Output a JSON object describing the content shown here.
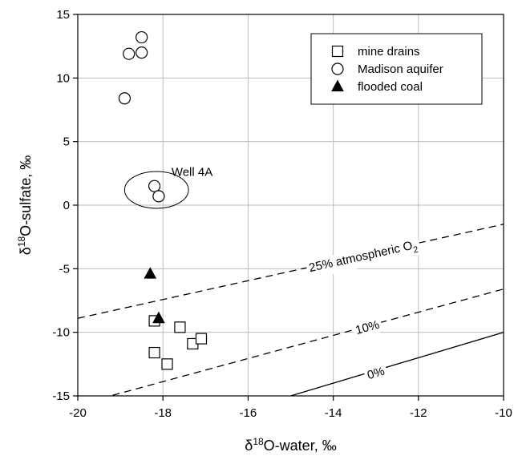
{
  "chart_data": {
    "type": "scatter",
    "xlabel": {
      "main": "δ",
      "sup": "18",
      "rest": "O-water, ‰"
    },
    "ylabel": {
      "main": "δ",
      "sup": "18",
      "rest": "O-sulfate, ‰"
    },
    "xlim": [
      -20,
      -10
    ],
    "ylim": [
      -15,
      15
    ],
    "xticks": [
      -20,
      -18,
      -16,
      -14,
      -12,
      -10
    ],
    "yticks": [
      -15,
      -10,
      -5,
      0,
      5,
      10,
      15
    ],
    "grid": true,
    "legend_position": "top-right",
    "series": [
      {
        "name": "mine drains",
        "marker": "square",
        "points": [
          [
            -18.2,
            -9.1
          ],
          [
            -18.2,
            -11.6
          ],
          [
            -17.9,
            -12.5
          ],
          [
            -17.6,
            -9.6
          ],
          [
            -17.3,
            -10.9
          ],
          [
            -17.1,
            -10.5
          ]
        ]
      },
      {
        "name": "Madison aquifer",
        "marker": "circle",
        "points": [
          [
            -18.9,
            8.4
          ],
          [
            -18.8,
            11.9
          ],
          [
            -18.5,
            12.0
          ],
          [
            -18.5,
            13.2
          ],
          [
            -18.2,
            1.5
          ],
          [
            -18.1,
            0.7
          ]
        ]
      },
      {
        "name": "flooded coal",
        "marker": "triangle",
        "points": [
          [
            -18.3,
            -5.4
          ],
          [
            -18.1,
            -8.9
          ]
        ]
      }
    ],
    "reference_lines": [
      {
        "label": "25% atmospheric O",
        "sub": "2",
        "style": "dashed",
        "x": [
          -20,
          -10
        ],
        "y": [
          -8.9,
          -1.5
        ],
        "label_at": [
          -13.3,
          -4.0
        ]
      },
      {
        "label": "10%",
        "style": "dashed",
        "x": [
          -20,
          -10
        ],
        "y": [
          -15.7,
          -6.6
        ],
        "label_at": [
          -13.2,
          -9.6
        ]
      },
      {
        "label": "0%",
        "style": "solid",
        "x": [
          -15,
          -10
        ],
        "y": [
          -15,
          -10
        ],
        "label_at": [
          -13.0,
          -13.2
        ]
      }
    ],
    "annotations": [
      {
        "text": "Well 4A",
        "at": [
          -17.8,
          2.3
        ]
      }
    ],
    "highlight_ellipse": {
      "center": [
        -18.15,
        1.2
      ],
      "rx": 0.75,
      "ry": 1.45
    }
  }
}
